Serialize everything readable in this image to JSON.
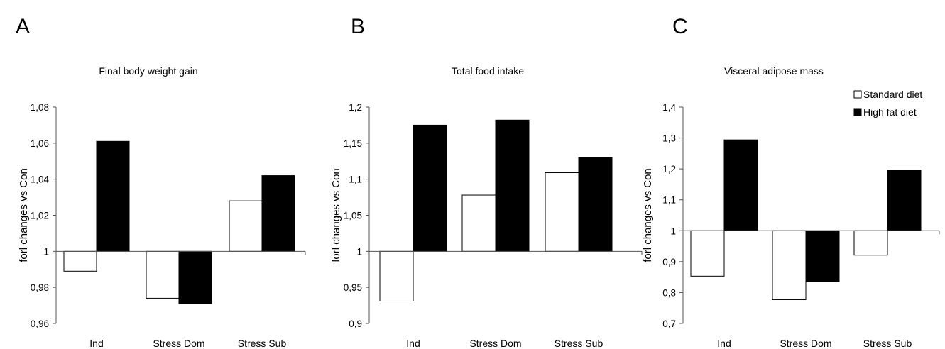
{
  "chart_data": [
    {
      "type": "bar",
      "panel": "A",
      "title": "Final body weight gain",
      "ylabel": "forl changes vs Con",
      "xlabel": "",
      "categories": [
        "Ind",
        "Stress Dom",
        "Stress Sub"
      ],
      "baseline": 1,
      "ylim": [
        0.96,
        1.08
      ],
      "yticks": [
        "1,08",
        "1,06",
        "1,04",
        "1,02",
        "1",
        "0,98",
        "0,96"
      ],
      "ytick_values": [
        1.08,
        1.06,
        1.04,
        1.02,
        1.0,
        0.98,
        0.96
      ],
      "series": [
        {
          "name": "Standard diet",
          "color": "#ffffff",
          "values": [
            0.989,
            0.974,
            1.028
          ]
        },
        {
          "name": "High fat diet",
          "color": "#000000",
          "values": [
            1.061,
            0.971,
            1.042
          ]
        }
      ]
    },
    {
      "type": "bar",
      "panel": "B",
      "title": "Total food intake",
      "ylabel": "forl changes vs Con",
      "xlabel": "",
      "categories": [
        "Ind",
        "Stress Dom",
        "Stress Sub"
      ],
      "baseline": 1,
      "ylim": [
        0.9,
        1.2
      ],
      "yticks": [
        "1,2",
        "1,15",
        "1,1",
        "1,05",
        "1",
        "0,95",
        "0,9"
      ],
      "ytick_values": [
        1.2,
        1.15,
        1.1,
        1.05,
        1.0,
        0.95,
        0.9
      ],
      "series": [
        {
          "name": "Standard diet",
          "color": "#ffffff",
          "values": [
            0.931,
            1.078,
            1.109
          ]
        },
        {
          "name": "High fat diet",
          "color": "#000000",
          "values": [
            1.175,
            1.182,
            1.13
          ]
        }
      ]
    },
    {
      "type": "bar",
      "panel": "C",
      "title": "Visceral adipose mass",
      "ylabel": "forl changes vs Con",
      "xlabel": "",
      "categories": [
        "Ind",
        "Stress Dom",
        "Stress Sub"
      ],
      "baseline": 1,
      "ylim": [
        0.7,
        1.4
      ],
      "yticks": [
        "1,4",
        "1,3",
        "1,2",
        "1,1",
        "1",
        "0,9",
        "0,8",
        "0,7"
      ],
      "ytick_values": [
        1.4,
        1.3,
        1.2,
        1.1,
        1.0,
        0.9,
        0.8,
        0.7
      ],
      "legend": {
        "position": "top-right",
        "entries": [
          "Standard diet",
          "High fat diet"
        ]
      },
      "series": [
        {
          "name": "Standard diet",
          "color": "#ffffff",
          "values": [
            0.853,
            0.777,
            0.921
          ]
        },
        {
          "name": "High fat diet",
          "color": "#000000",
          "values": [
            1.294,
            0.835,
            1.196
          ]
        }
      ]
    }
  ]
}
